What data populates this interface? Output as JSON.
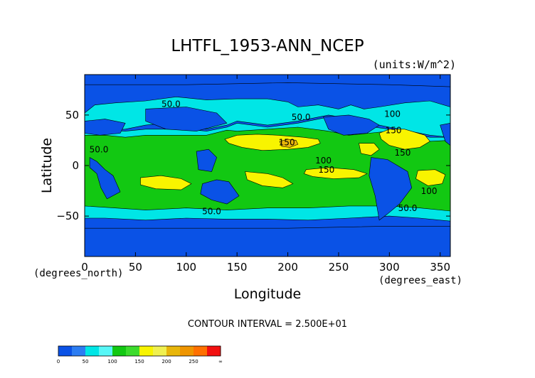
{
  "chart_data": {
    "type": "heatmap",
    "title": "LHTFL_1953-ANN_NCEP",
    "units_note": "(units:W/m^2)",
    "xlabel": "Longitude",
    "ylabel": "Latitude",
    "x_unit_note": "(degrees_east)",
    "y_unit_note": "(degrees_north)",
    "xlim": [
      0,
      360
    ],
    "ylim": [
      -90,
      90
    ],
    "x_ticks": [
      0,
      50,
      100,
      150,
      200,
      250,
      300,
      350
    ],
    "y_ticks": [
      50,
      0,
      -50
    ],
    "x_tick_labels": [
      "0",
      "50",
      "100",
      "150",
      "200",
      "250",
      "300",
      "350"
    ],
    "y_tick_labels": [
      "50",
      "0",
      "−50"
    ],
    "contour_interval_text": "CONTOUR INTERVAL = 2.500E+01",
    "contour_labels": [
      {
        "text": "50.0",
        "lon": 85,
        "lat": 58
      },
      {
        "text": "50.0",
        "lon": 213,
        "lat": 45
      },
      {
        "text": "50.0",
        "lon": 14,
        "lat": 13
      },
      {
        "text": "50.0",
        "lon": 125,
        "lat": -48
      },
      {
        "text": "100",
        "lon": 235,
        "lat": 2
      },
      {
        "text": "150",
        "lon": 238,
        "lat": -7
      },
      {
        "text": "100",
        "lon": 339,
        "lat": -28
      },
      {
        "text": "150",
        "lon": 304,
        "lat": 32
      },
      {
        "text": "150",
        "lon": 313,
        "lat": 10
      },
      {
        "text": "150",
        "lon": 199,
        "lat": 20
      },
      {
        "text": "50.0",
        "lon": 318,
        "lat": -45
      },
      {
        "text": "100",
        "lon": 303,
        "lat": 48
      }
    ],
    "color_levels": [
      0,
      25,
      50,
      75,
      100,
      125,
      150,
      175,
      200,
      225,
      250,
      275,
      300
    ],
    "colors": [
      "#0a52e6",
      "#2c7df2",
      "#00e6e6",
      "#57f7f7",
      "#12c812",
      "#3cdb2c",
      "#f8f400",
      "#f0f050",
      "#e8b60a",
      "#ef9500",
      "#ff7000",
      "#f21010"
    ],
    "legend_tick_labels": [
      "0",
      "50",
      "100",
      "150",
      "200",
      "250",
      "∞"
    ],
    "legend_ticks": [
      0,
      50,
      100,
      150,
      200,
      250,
      300
    ],
    "field_regions": [
      {
        "level": 50,
        "poly": [
          [
            0,
            52
          ],
          [
            10,
            60
          ],
          [
            30,
            62
          ],
          [
            60,
            64
          ],
          [
            90,
            68
          ],
          [
            120,
            65
          ],
          [
            150,
            66
          ],
          [
            180,
            66
          ],
          [
            200,
            63
          ],
          [
            210,
            58
          ],
          [
            230,
            60
          ],
          [
            250,
            56
          ],
          [
            262,
            60
          ],
          [
            275,
            56
          ],
          [
            290,
            58
          ],
          [
            315,
            62
          ],
          [
            340,
            64
          ],
          [
            360,
            58
          ],
          [
            360,
            28
          ],
          [
            340,
            30
          ],
          [
            320,
            34
          ],
          [
            300,
            38
          ],
          [
            290,
            40
          ],
          [
            270,
            45
          ],
          [
            240,
            50
          ],
          [
            210,
            44
          ],
          [
            180,
            40
          ],
          [
            150,
            44
          ],
          [
            140,
            40
          ],
          [
            120,
            36
          ],
          [
            100,
            40
          ],
          [
            80,
            42
          ],
          [
            60,
            40
          ],
          [
            40,
            36
          ],
          [
            20,
            35
          ],
          [
            0,
            34
          ]
        ]
      },
      {
        "level": 50,
        "poly": [
          [
            0,
            34
          ],
          [
            20,
            35
          ],
          [
            40,
            34
          ],
          [
            60,
            36
          ],
          [
            100,
            36
          ],
          [
            120,
            34
          ],
          [
            140,
            38
          ],
          [
            150,
            42
          ],
          [
            180,
            38
          ],
          [
            210,
            42
          ],
          [
            240,
            48
          ],
          [
            265,
            42
          ],
          [
            285,
            38
          ],
          [
            300,
            36
          ],
          [
            320,
            32
          ],
          [
            340,
            28
          ],
          [
            360,
            28
          ],
          [
            360,
            -55
          ],
          [
            330,
            -52
          ],
          [
            300,
            -50
          ],
          [
            260,
            -52
          ],
          [
            220,
            -54
          ],
          [
            180,
            -53
          ],
          [
            140,
            -53
          ],
          [
            100,
            -52
          ],
          [
            60,
            -54
          ],
          [
            20,
            -52
          ],
          [
            0,
            -52
          ]
        ]
      },
      {
        "level": 100,
        "poly": [
          [
            0,
            30
          ],
          [
            20,
            30
          ],
          [
            40,
            28
          ],
          [
            60,
            30
          ],
          [
            120,
            30
          ],
          [
            140,
            35
          ],
          [
            150,
            34
          ],
          [
            180,
            36
          ],
          [
            210,
            38
          ],
          [
            240,
            34
          ],
          [
            260,
            30
          ],
          [
            280,
            32
          ],
          [
            300,
            34
          ],
          [
            320,
            30
          ],
          [
            340,
            24
          ],
          [
            360,
            25
          ],
          [
            360,
            -45
          ],
          [
            330,
            -42
          ],
          [
            300,
            -40
          ],
          [
            260,
            -40
          ],
          [
            220,
            -42
          ],
          [
            180,
            -42
          ],
          [
            140,
            -44
          ],
          [
            100,
            -42
          ],
          [
            60,
            -44
          ],
          [
            30,
            -42
          ],
          [
            0,
            -40
          ]
        ]
      },
      {
        "level": 150,
        "poly": [
          [
            138,
            26
          ],
          [
            150,
            30
          ],
          [
            170,
            31
          ],
          [
            190,
            30
          ],
          [
            215,
            28
          ],
          [
            230,
            26
          ],
          [
            232,
            22
          ],
          [
            220,
            18
          ],
          [
            200,
            16
          ],
          [
            175,
            15
          ],
          [
            155,
            18
          ],
          [
            142,
            22
          ]
        ]
      },
      {
        "level": 150,
        "poly": [
          [
            290,
            32
          ],
          [
            300,
            36
          ],
          [
            315,
            36
          ],
          [
            335,
            30
          ],
          [
            340,
            24
          ],
          [
            330,
            18
          ],
          [
            315,
            16
          ],
          [
            300,
            20
          ],
          [
            292,
            26
          ]
        ]
      },
      {
        "level": 150,
        "poly": [
          [
            218,
            -4
          ],
          [
            240,
            -2
          ],
          [
            265,
            -4
          ],
          [
            278,
            -8
          ],
          [
            270,
            -12
          ],
          [
            245,
            -13
          ],
          [
            225,
            -11
          ],
          [
            216,
            -8
          ]
        ]
      },
      {
        "level": 150,
        "poly": [
          [
            158,
            -6
          ],
          [
            180,
            -8
          ],
          [
            195,
            -12
          ],
          [
            205,
            -18
          ],
          [
            195,
            -22
          ],
          [
            175,
            -20
          ],
          [
            160,
            -14
          ]
        ]
      },
      {
        "level": 150,
        "poly": [
          [
            55,
            -12
          ],
          [
            75,
            -10
          ],
          [
            95,
            -13
          ],
          [
            105,
            -18
          ],
          [
            95,
            -24
          ],
          [
            70,
            -23
          ],
          [
            55,
            -19
          ]
        ]
      },
      {
        "level": 150,
        "poly": [
          [
            328,
            -5
          ],
          [
            345,
            -4
          ],
          [
            355,
            -9
          ],
          [
            352,
            -18
          ],
          [
            338,
            -20
          ],
          [
            326,
            -13
          ]
        ]
      },
      {
        "level": 150,
        "poly": [
          [
            270,
            22
          ],
          [
            285,
            22
          ],
          [
            290,
            16
          ],
          [
            282,
            10
          ],
          [
            272,
            12
          ]
        ]
      },
      {
        "level": 200,
        "poly": [
          [
            192,
            24
          ],
          [
            200,
            26
          ],
          [
            208,
            25
          ],
          [
            210,
            21
          ],
          [
            202,
            18
          ],
          [
            194,
            19
          ]
        ]
      },
      {
        "level": 0,
        "poly": [
          [
            0,
            -90
          ],
          [
            360,
            -90
          ],
          [
            360,
            -60
          ],
          [
            300,
            -60
          ],
          [
            200,
            -62
          ],
          [
            100,
            -62
          ],
          [
            0,
            -62
          ]
        ]
      },
      {
        "level": 0,
        "poly": [
          [
            0,
            90
          ],
          [
            360,
            90
          ],
          [
            360,
            78
          ],
          [
            300,
            80
          ],
          [
            200,
            82
          ],
          [
            100,
            80
          ],
          [
            0,
            80
          ]
        ]
      },
      {
        "level": 0,
        "poly": [
          [
            5,
            8
          ],
          [
            12,
            4
          ],
          [
            20,
            -4
          ],
          [
            28,
            -10
          ],
          [
            35,
            -26
          ],
          [
            22,
            -33
          ],
          [
            16,
            -22
          ],
          [
            12,
            -8
          ],
          [
            5,
            -2
          ]
        ]
      },
      {
        "level": 0,
        "poly": [
          [
            110,
            14
          ],
          [
            122,
            16
          ],
          [
            130,
            8
          ],
          [
            125,
            -6
          ],
          [
            112,
            -4
          ]
        ]
      },
      {
        "level": 0,
        "poly": [
          [
            116,
            -18
          ],
          [
            130,
            -14
          ],
          [
            142,
            -16
          ],
          [
            152,
            -30
          ],
          [
            140,
            -38
          ],
          [
            125,
            -34
          ],
          [
            114,
            -28
          ]
        ]
      },
      {
        "level": 0,
        "poly": [
          [
            282,
            8
          ],
          [
            298,
            6
          ],
          [
            318,
            -6
          ],
          [
            322,
            -22
          ],
          [
            310,
            -38
          ],
          [
            298,
            -48
          ],
          [
            290,
            -54
          ],
          [
            286,
            -30
          ],
          [
            280,
            -10
          ]
        ]
      },
      {
        "level": 0,
        "poly": [
          [
            235,
            48
          ],
          [
            260,
            50
          ],
          [
            280,
            46
          ],
          [
            290,
            40
          ],
          [
            278,
            32
          ],
          [
            255,
            30
          ],
          [
            240,
            36
          ]
        ]
      },
      {
        "level": 0,
        "poly": [
          [
            60,
            56
          ],
          [
            100,
            58
          ],
          [
            130,
            52
          ],
          [
            140,
            42
          ],
          [
            110,
            34
          ],
          [
            80,
            36
          ],
          [
            60,
            44
          ]
        ]
      },
      {
        "level": 0,
        "poly": [
          [
            350,
            40
          ],
          [
            360,
            42
          ],
          [
            360,
            20
          ],
          [
            355,
            24
          ]
        ]
      },
      {
        "level": 0,
        "poly": [
          [
            0,
            44
          ],
          [
            20,
            46
          ],
          [
            40,
            42
          ],
          [
            35,
            32
          ],
          [
            15,
            30
          ],
          [
            0,
            32
          ]
        ]
      }
    ]
  }
}
